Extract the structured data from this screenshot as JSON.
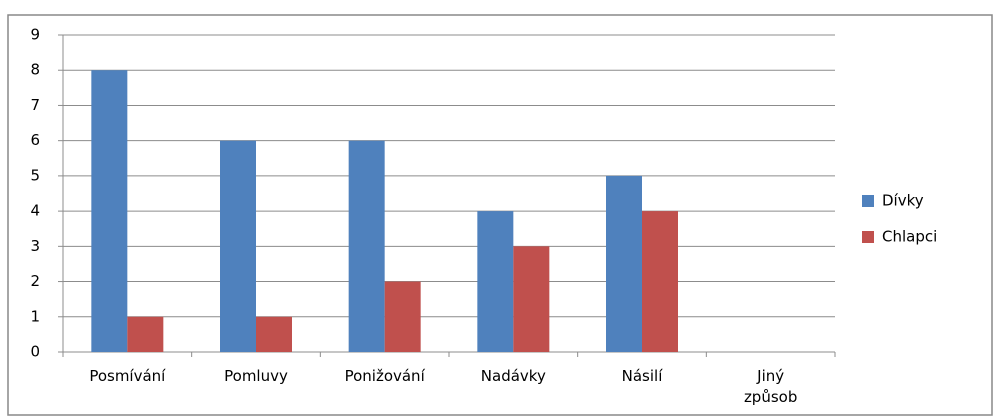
{
  "chart_data": {
    "type": "bar",
    "categories": [
      "Posmívání",
      "Pomluvy",
      "Ponižování",
      "Nadávky",
      "Násilí",
      "Jiný způsob"
    ],
    "series": [
      {
        "name": "Dívky",
        "color": "#4f81bd",
        "values": [
          8,
          6,
          6,
          4,
          5,
          0
        ]
      },
      {
        "name": "Chlapci",
        "color": "#c0504d",
        "values": [
          1,
          1,
          2,
          3,
          4,
          0
        ]
      }
    ],
    "ylim": [
      0,
      9
    ],
    "yticks": [
      0,
      1,
      2,
      3,
      4,
      5,
      6,
      7,
      8,
      9
    ],
    "grid": true,
    "legend": "right"
  }
}
